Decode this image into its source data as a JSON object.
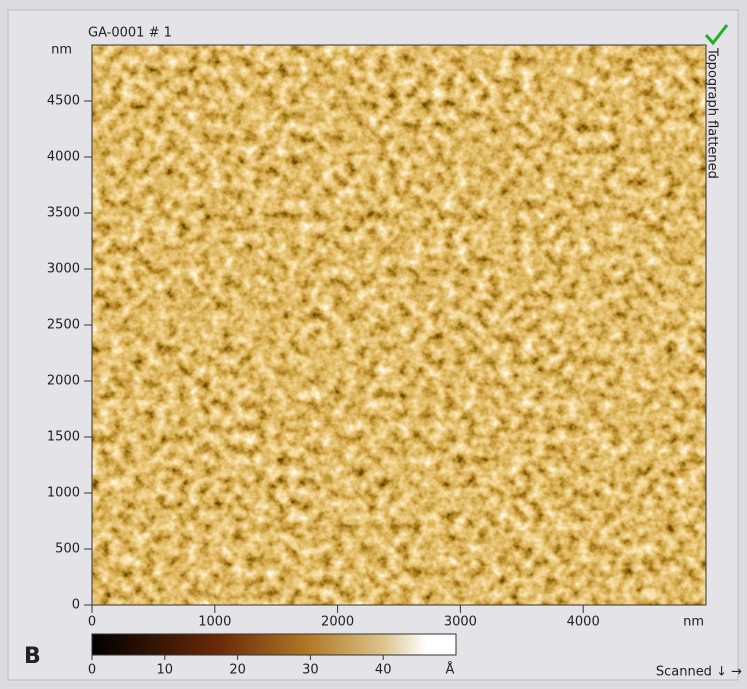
{
  "chart_data": {
    "type": "image",
    "title": "GA-0001 # 1",
    "side_label": "Topograph flattened",
    "x_unit": "nm",
    "y_unit": "nm",
    "xlim": [
      0,
      5000
    ],
    "ylim": [
      0,
      5000
    ],
    "xticks": [
      0,
      1000,
      2000,
      3000,
      4000
    ],
    "yticks": [
      0,
      500,
      1000,
      1500,
      2000,
      2500,
      3000,
      3500,
      4000,
      4500
    ],
    "colorbar": {
      "lim": [
        0,
        50
      ],
      "ticks": [
        0,
        10,
        20,
        30,
        40
      ],
      "unit": "Å"
    },
    "panel_label": "B",
    "status": "Scanned ↓ →"
  }
}
